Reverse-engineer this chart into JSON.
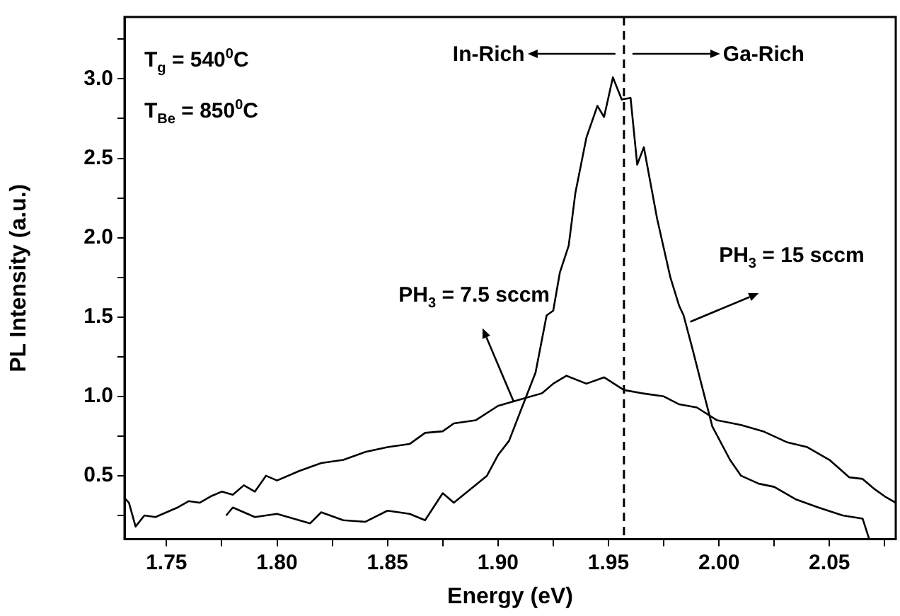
{
  "chart_data": {
    "type": "line",
    "xlabel": "Energy (eV)",
    "ylabel": "PL Intensity (a.u.)",
    "xlim": [
      1.731,
      2.08
    ],
    "ylim": [
      0.1,
      3.39
    ],
    "xticks": [
      {
        "value": 1.75,
        "label": "1.75"
      },
      {
        "value": 1.775,
        "label": null
      },
      {
        "value": 1.8,
        "label": "1.80"
      },
      {
        "value": 1.825,
        "label": null
      },
      {
        "value": 1.85,
        "label": "1.85"
      },
      {
        "value": 1.875,
        "label": null
      },
      {
        "value": 1.9,
        "label": "1.90"
      },
      {
        "value": 1.925,
        "label": null
      },
      {
        "value": 1.95,
        "label": "1.95"
      },
      {
        "value": 1.975,
        "label": null
      },
      {
        "value": 2.0,
        "label": "2.00"
      },
      {
        "value": 2.025,
        "label": null
      },
      {
        "value": 2.05,
        "label": "2.05"
      },
      {
        "value": 2.075,
        "label": null
      }
    ],
    "yticks": [
      {
        "value": 0.25,
        "label": null
      },
      {
        "value": 0.5,
        "label": "0.5"
      },
      {
        "value": 0.75,
        "label": null
      },
      {
        "value": 1.0,
        "label": "1.0"
      },
      {
        "value": 1.25,
        "label": null
      },
      {
        "value": 1.5,
        "label": "1.5"
      },
      {
        "value": 1.75,
        "label": null
      },
      {
        "value": 2.0,
        "label": "2.0"
      },
      {
        "value": 2.25,
        "label": null
      },
      {
        "value": 2.5,
        "label": "2.5"
      },
      {
        "value": 2.75,
        "label": null
      },
      {
        "value": 3.0,
        "label": "3.0"
      },
      {
        "value": 3.25,
        "label": null
      }
    ],
    "grid": false,
    "legend": false,
    "marker": "none",
    "line_style": "solid",
    "series": [
      {
        "name": "PH$_{3}$ = 7.5 sccm",
        "color": "#000000",
        "x": [
          1.731,
          1.733,
          1.736,
          1.74,
          1.745,
          1.75,
          1.755,
          1.76,
          1.765,
          1.77,
          1.775,
          1.78,
          1.785,
          1.79,
          1.795,
          1.8,
          1.81,
          1.82,
          1.83,
          1.84,
          1.85,
          1.86,
          1.867,
          1.875,
          1.88,
          1.89,
          1.9,
          1.91,
          1.92,
          1.925,
          1.931,
          1.94,
          1.948,
          1.957,
          1.965,
          1.975,
          1.982,
          1.99,
          1.999,
          2.01,
          2.02,
          2.031,
          2.04,
          2.05,
          2.059,
          2.065,
          2.07,
          2.075,
          2.08
        ],
        "values": [
          0.36,
          0.33,
          0.18,
          0.25,
          0.24,
          0.27,
          0.3,
          0.34,
          0.33,
          0.37,
          0.4,
          0.38,
          0.44,
          0.4,
          0.5,
          0.47,
          0.53,
          0.58,
          0.6,
          0.65,
          0.68,
          0.7,
          0.77,
          0.78,
          0.83,
          0.85,
          0.94,
          0.98,
          1.02,
          1.08,
          1.13,
          1.08,
          1.12,
          1.04,
          1.02,
          1.0,
          0.95,
          0.93,
          0.85,
          0.82,
          0.78,
          0.71,
          0.68,
          0.6,
          0.49,
          0.48,
          0.42,
          0.37,
          0.33
        ]
      },
      {
        "name": "PH$_{3}$ = 15 sccm",
        "color": "#000000",
        "x": [
          1.777,
          1.78,
          1.79,
          1.8,
          1.81,
          1.815,
          1.82,
          1.83,
          1.84,
          1.85,
          1.86,
          1.867,
          1.875,
          1.88,
          1.888,
          1.895,
          1.9,
          1.905,
          1.91,
          1.917,
          1.922,
          1.925,
          1.928,
          1.932,
          1.935,
          1.94,
          1.945,
          1.948,
          1.952,
          1.956,
          1.96,
          1.963,
          1.966,
          1.972,
          1.978,
          1.982,
          1.984,
          1.988,
          1.992,
          1.997,
          2.005,
          2.01,
          2.018,
          2.025,
          2.035,
          2.045,
          2.056,
          2.065,
          2.068
        ],
        "values": [
          0.25,
          0.3,
          0.24,
          0.26,
          0.22,
          0.2,
          0.27,
          0.22,
          0.21,
          0.28,
          0.26,
          0.22,
          0.39,
          0.33,
          0.42,
          0.5,
          0.63,
          0.72,
          0.9,
          1.15,
          1.51,
          1.54,
          1.78,
          1.95,
          2.28,
          2.63,
          2.83,
          2.76,
          3.01,
          2.87,
          2.88,
          2.46,
          2.57,
          2.12,
          1.75,
          1.57,
          1.51,
          1.3,
          1.08,
          0.81,
          0.6,
          0.5,
          0.45,
          0.43,
          0.35,
          0.3,
          0.25,
          0.23,
          0.1
        ]
      }
    ],
    "ref_lines": [
      {
        "axis": "x",
        "value": 1.957,
        "color": "#000000",
        "line_style": "dashed"
      }
    ],
    "annotations": [
      "T$_{g}$ = 540$^{0}$C",
      "T$_{Be}$ = 850$^{0}$C",
      "In-Rich",
      "Ga-Rich"
    ]
  }
}
